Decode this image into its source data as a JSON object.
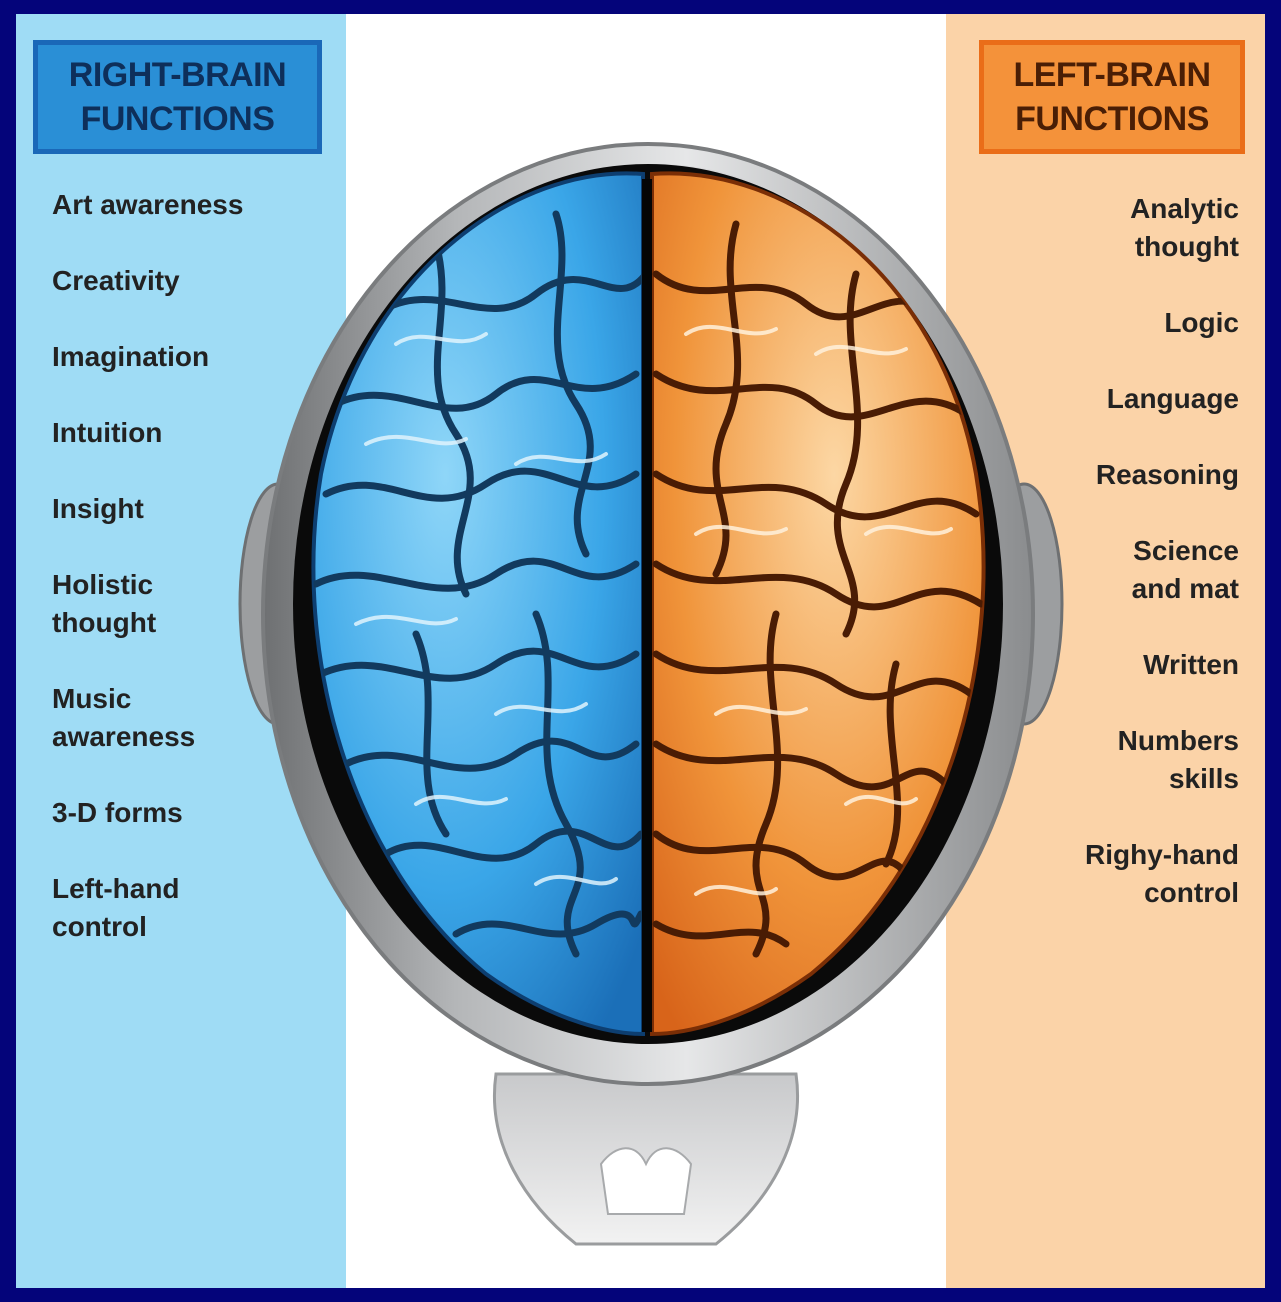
{
  "right_brain": {
    "title": "RIGHT-BRAIN\nFUNCTIONS",
    "items": [
      "Art awareness",
      "Creativity",
      "Imagination",
      "Intuition",
      "Insight",
      "Holistic\nthought",
      "Music\nawareness",
      "3-D forms",
      "Left-hand\ncontrol"
    ],
    "color": "#2a8fd6"
  },
  "left_brain": {
    "title": "LEFT-BRAIN\nFUNCTIONS",
    "items": [
      "Analytic\nthought",
      "Logic",
      "Language",
      "Reasoning",
      "Science\nand mat",
      "Written",
      "Numbers\nskills",
      "Righy-hand\ncontrol"
    ],
    "color": "#f4923a"
  },
  "colors": {
    "frame": "#04047a",
    "right_panel": "#9fdcf5",
    "left_panel": "#fbd3a8",
    "blue_hemisphere": "#3aa6e8",
    "orange_hemisphere": "#f0943a"
  }
}
